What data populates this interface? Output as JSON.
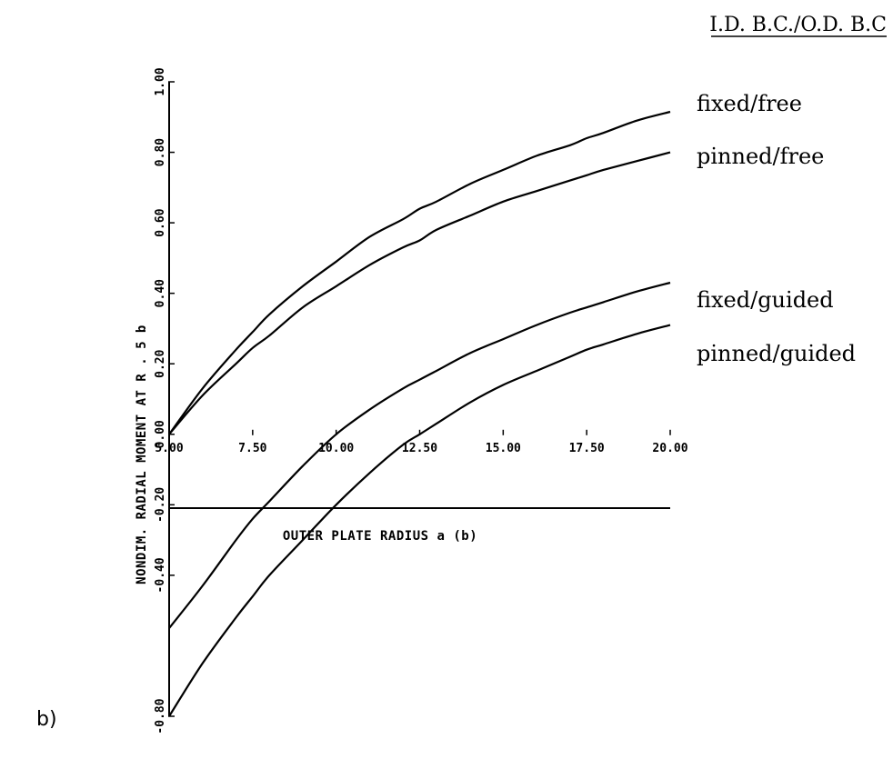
{
  "panel_label": "b)",
  "legend_heading": "I.D. B.C./O.D. B.C",
  "chart_data": {
    "type": "line",
    "xlabel": "OUTER PLATE RADIUS a (b)",
    "ylabel": "NONDIM. RADIAL MOMENT AT R . 5 b",
    "xlim": [
      5.0,
      20.0
    ],
    "ylim": [
      -0.8,
      1.0
    ],
    "x_ticks": [
      "5.00",
      "7.50",
      "10.00",
      "12.50",
      "15.00",
      "17.50",
      "20.00"
    ],
    "y_ticks": [
      "-0.80",
      "-0.40",
      "-0.20",
      "0.00",
      "0.20",
      "0.40",
      "0.60",
      "0.80",
      "1.00"
    ],
    "grid": false,
    "series": [
      {
        "name": "fixed/free",
        "x": [
          5.0,
          6.0,
          7.0,
          7.5,
          8.0,
          9.0,
          10.0,
          11.0,
          12.0,
          12.5,
          13.0,
          14.0,
          15.0,
          16.0,
          17.0,
          17.5,
          18.0,
          19.0,
          20.0
        ],
        "y": [
          0.0,
          0.13,
          0.24,
          0.29,
          0.34,
          0.42,
          0.49,
          0.56,
          0.61,
          0.64,
          0.66,
          0.71,
          0.75,
          0.79,
          0.82,
          0.84,
          0.855,
          0.89,
          0.915
        ]
      },
      {
        "name": "pinned/free",
        "x": [
          5.0,
          6.0,
          7.0,
          7.5,
          8.0,
          9.0,
          10.0,
          11.0,
          12.0,
          12.5,
          13.0,
          14.0,
          15.0,
          16.0,
          17.0,
          17.5,
          18.0,
          19.0,
          20.0
        ],
        "y": [
          0.0,
          0.11,
          0.2,
          0.245,
          0.28,
          0.36,
          0.42,
          0.48,
          0.53,
          0.55,
          0.58,
          0.62,
          0.66,
          0.69,
          0.72,
          0.735,
          0.75,
          0.775,
          0.8
        ]
      },
      {
        "name": "fixed/guided",
        "x": [
          5.0,
          6.0,
          7.0,
          7.5,
          8.0,
          9.0,
          10.0,
          11.0,
          12.0,
          12.5,
          13.0,
          14.0,
          15.0,
          16.0,
          17.0,
          17.5,
          18.0,
          19.0,
          20.0
        ],
        "y": [
          -0.55,
          -0.43,
          -0.3,
          -0.24,
          -0.19,
          -0.09,
          0.0,
          0.07,
          0.13,
          0.155,
          0.18,
          0.23,
          0.27,
          0.31,
          0.345,
          0.36,
          0.375,
          0.405,
          0.43
        ]
      },
      {
        "name": "pinned/guided",
        "x": [
          5.0,
          6.0,
          7.0,
          7.5,
          8.0,
          9.0,
          10.0,
          11.0,
          12.0,
          12.5,
          13.0,
          14.0,
          15.0,
          16.0,
          17.0,
          17.5,
          18.0,
          19.0,
          20.0
        ],
        "y": [
          -0.8,
          -0.65,
          -0.52,
          -0.46,
          -0.4,
          -0.3,
          -0.2,
          -0.11,
          -0.03,
          0.0,
          0.03,
          0.09,
          0.14,
          0.18,
          0.22,
          0.24,
          0.255,
          0.285,
          0.31
        ]
      }
    ]
  }
}
